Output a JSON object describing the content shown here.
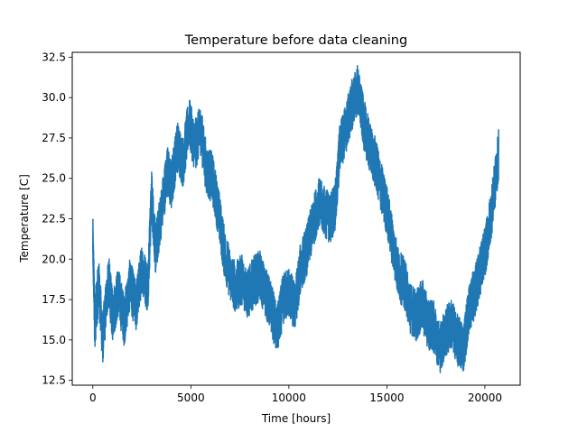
{
  "chart_data": {
    "type": "line",
    "title": "Temperature before data cleaning",
    "xlabel": "Time [hours]",
    "ylabel": "Temperature [C]",
    "xlim": [
      -1050,
      21800
    ],
    "ylim": [
      12.2,
      32.8
    ],
    "xticks": [
      0,
      5000,
      10000,
      15000,
      20000
    ],
    "xtick_labels": [
      "0",
      "5000",
      "10000",
      "15000",
      "20000"
    ],
    "yticks": [
      12.5,
      15.0,
      17.5,
      20.0,
      22.5,
      25.0,
      27.5,
      30.0,
      32.5
    ],
    "ytick_labels": [
      "12.5",
      "15.0",
      "17.5",
      "20.0",
      "22.5",
      "25.0",
      "27.5",
      "30.0",
      "32.5"
    ],
    "grid": false,
    "color": "#1f77b4",
    "series": [
      {
        "points": [
          [
            0,
            21.1
          ],
          [
            100,
            16.0
          ],
          [
            300,
            18.5
          ],
          [
            500,
            15.0
          ],
          [
            800,
            18.8
          ],
          [
            1000,
            16.5
          ],
          [
            1300,
            18.0
          ],
          [
            1600,
            16.2
          ],
          [
            1900,
            18.5
          ],
          [
            2200,
            17.0
          ],
          [
            2500,
            19.5
          ],
          [
            2800,
            18.2
          ],
          [
            3000,
            24.0
          ],
          [
            3200,
            20.5
          ],
          [
            3500,
            23.0
          ],
          [
            3800,
            25.5
          ],
          [
            4000,
            24.5
          ],
          [
            4300,
            27.0
          ],
          [
            4600,
            26.0
          ],
          [
            4900,
            28.5
          ],
          [
            5200,
            27.0
          ],
          [
            5500,
            28.0
          ],
          [
            5800,
            25.5
          ],
          [
            6100,
            25.0
          ],
          [
            6400,
            23.0
          ],
          [
            6700,
            20.5
          ],
          [
            7000,
            19.0
          ],
          [
            7300,
            18.2
          ],
          [
            7600,
            18.8
          ],
          [
            7900,
            17.8
          ],
          [
            8200,
            18.6
          ],
          [
            8500,
            19.0
          ],
          [
            8800,
            18.0
          ],
          [
            9100,
            17.0
          ],
          [
            9400,
            15.5
          ],
          [
            9700,
            17.5
          ],
          [
            10000,
            18.0
          ],
          [
            10300,
            17.0
          ],
          [
            10600,
            19.5
          ],
          [
            10900,
            20.5
          ],
          [
            11200,
            22.0
          ],
          [
            11500,
            23.5
          ],
          [
            11800,
            23.0
          ],
          [
            12100,
            22.5
          ],
          [
            12400,
            23.5
          ],
          [
            12600,
            27.0
          ],
          [
            12900,
            28.0
          ],
          [
            13200,
            29.5
          ],
          [
            13500,
            30.5
          ],
          [
            13800,
            28.5
          ],
          [
            14100,
            27.0
          ],
          [
            14400,
            26.0
          ],
          [
            14700,
            24.5
          ],
          [
            15000,
            23.0
          ],
          [
            15300,
            21.0
          ],
          [
            15600,
            19.0
          ],
          [
            15900,
            18.5
          ],
          [
            16200,
            17.0
          ],
          [
            16500,
            16.5
          ],
          [
            16800,
            17.2
          ],
          [
            17100,
            16.0
          ],
          [
            17400,
            15.8
          ],
          [
            17700,
            14.5
          ],
          [
            18000,
            15.5
          ],
          [
            18300,
            16.0
          ],
          [
            18600,
            15.0
          ],
          [
            18900,
            14.5
          ],
          [
            19200,
            17.0
          ],
          [
            19500,
            18.0
          ],
          [
            19800,
            19.5
          ],
          [
            20100,
            21.0
          ],
          [
            20400,
            23.5
          ],
          [
            20700,
            26.5
          ]
        ]
      }
    ]
  }
}
